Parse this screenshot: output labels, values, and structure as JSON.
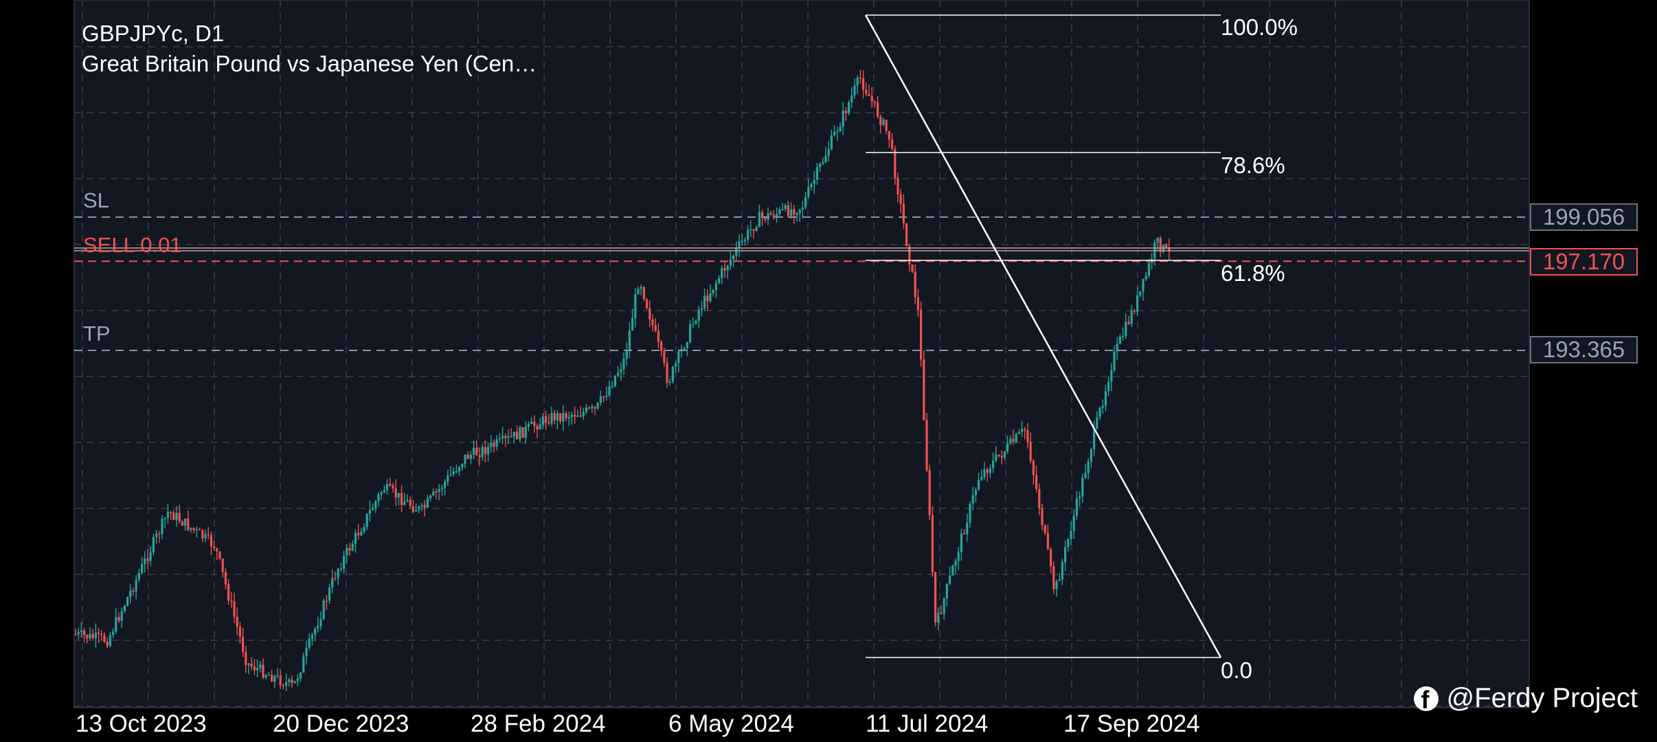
{
  "chart": {
    "symbol_line": "GBPJPYc, D1",
    "description_line": "Great Britain Pound vs Japanese Yen (Cen…"
  },
  "order_lines": {
    "sl": {
      "label": "SL",
      "price": "199.056",
      "color": "#9aa4b2"
    },
    "sell": {
      "label": "SELL 0.01",
      "price": "197.170",
      "color": "#ef5350"
    },
    "tp": {
      "label": "TP",
      "price": "193.365",
      "color": "#9aa4b2"
    }
  },
  "fibonacci": {
    "levels": [
      {
        "label": "100.0%"
      },
      {
        "label": "78.6%"
      },
      {
        "label": "61.8%"
      },
      {
        "label": "0.0"
      }
    ]
  },
  "watermark": {
    "text": "@Ferdy Project",
    "icon": "facebook-icon"
  },
  "colors": {
    "up": "#26a69a",
    "down": "#ef5350",
    "background": "#131722",
    "grid": "#3a3f4b"
  },
  "chart_data": {
    "type": "candlestick",
    "x_ticks": [
      "13 Oct 2023",
      "20 Dec 2023",
      "28 Feb 2024",
      "6 May 2024",
      "11 Jul 2024",
      "17 Sep 2024"
    ],
    "horizontal_levels": [
      199.056,
      197.17,
      193.365
    ],
    "fib_retracement": {
      "high_date": "~10 Jul 2024",
      "low_date": "~5 Aug 2024",
      "levels": [
        "100.0%",
        "78.6%",
        "61.8%",
        "0.0"
      ]
    },
    "path_close_approx": [
      [
        "2023-10-01",
        181.5
      ],
      [
        "2023-10-25",
        181.0
      ],
      [
        "2023-11-15",
        186.5
      ],
      [
        "2023-12-01",
        185.0
      ],
      [
        "2023-12-12",
        180.0
      ],
      [
        "2023-12-28",
        179.0
      ],
      [
        "2024-01-12",
        184.0
      ],
      [
        "2024-01-28",
        187.5
      ],
      [
        "2024-02-10",
        186.5
      ],
      [
        "2024-02-25",
        188.8
      ],
      [
        "2024-03-10",
        189.5
      ],
      [
        "2024-03-25",
        190.5
      ],
      [
        "2024-04-10",
        190.8
      ],
      [
        "2024-04-20",
        193.0
      ],
      [
        "2024-04-25",
        196.5
      ],
      [
        "2024-05-05",
        192.0
      ],
      [
        "2024-05-15",
        195.0
      ],
      [
        "2024-05-25",
        197.0
      ],
      [
        "2024-06-05",
        199.0
      ],
      [
        "2024-06-20",
        199.5
      ],
      [
        "2024-07-10",
        205.0
      ],
      [
        "2024-07-20",
        202.5
      ],
      [
        "2024-07-30",
        195.0
      ],
      [
        "2024-08-05",
        181.5
      ],
      [
        "2024-08-20",
        188.0
      ],
      [
        "2024-09-05",
        190.0
      ],
      [
        "2024-09-15",
        183.0
      ],
      [
        "2024-09-25",
        188.0
      ],
      [
        "2024-10-05",
        193.0
      ],
      [
        "2024-10-15",
        196.0
      ],
      [
        "2024-10-20",
        198.0
      ],
      [
        "2024-10-24",
        197.5
      ]
    ]
  }
}
